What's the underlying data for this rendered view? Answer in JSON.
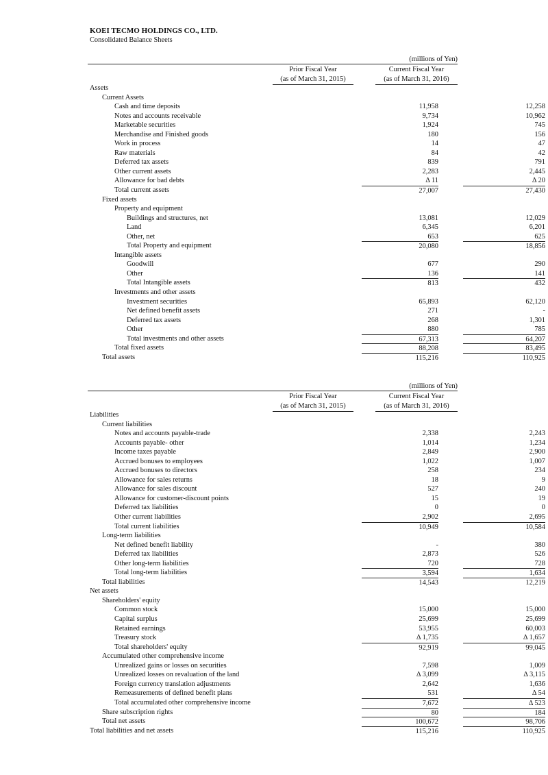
{
  "company": "KOEI TECMO HOLDINGS CO., LTD.",
  "subtitle": "Consolidated Balance Sheets",
  "unit": "(millions of Yen)",
  "col_prior": [
    "Prior Fiscal Year",
    "(as of March 31, 2015)"
  ],
  "col_current": [
    "Current Fiscal Year",
    "(as of March 31, 2016)"
  ],
  "assets": [
    {
      "label": "Assets",
      "level": 0
    },
    {
      "label": "Current Assets",
      "level": 1
    },
    {
      "label": "Cash and time deposits",
      "level": 2,
      "prior": "11,958",
      "current": "12,258"
    },
    {
      "label": "Notes and accounts receivable",
      "level": 2,
      "prior": "9,734",
      "current": "10,962"
    },
    {
      "label": "Marketable securities",
      "level": 2,
      "prior": "1,924",
      "current": "745"
    },
    {
      "label": "Merchandise and Finished goods",
      "level": 2,
      "prior": "180",
      "current": "156"
    },
    {
      "label": "Work in process",
      "level": 2,
      "prior": "14",
      "current": "47"
    },
    {
      "label": "Raw materials",
      "level": 2,
      "prior": "84",
      "current": "42"
    },
    {
      "label": "Deferred tax assets",
      "level": 2,
      "prior": "839",
      "current": "791"
    },
    {
      "label": "Other current assets",
      "level": 2,
      "prior": "2,283",
      "current": "2,445"
    },
    {
      "label": "Allowance for bad debts",
      "level": 2,
      "prior": "Δ 11",
      "current": "Δ 20"
    },
    {
      "label": "Total current assets",
      "level": 2,
      "prior": "27,007",
      "current": "27,430",
      "total": true
    },
    {
      "label": "Fixed assets",
      "level": 1
    },
    {
      "label": "Property and equipment",
      "level": 2
    },
    {
      "label": "Buildings and structures, net",
      "level": 3,
      "prior": "13,081",
      "current": "12,029"
    },
    {
      "label": "Land",
      "level": 3,
      "prior": "6,345",
      "current": "6,201"
    },
    {
      "label": "Other, net",
      "level": 3,
      "prior": "653",
      "current": "625"
    },
    {
      "label": "Total Property and equipment",
      "level": 3,
      "prior": "20,080",
      "current": "18,856",
      "total": true
    },
    {
      "label": "Intangible assets",
      "level": 2
    },
    {
      "label": "Goodwill",
      "level": 3,
      "prior": "677",
      "current": "290"
    },
    {
      "label": "Other",
      "level": 3,
      "prior": "136",
      "current": "141"
    },
    {
      "label": "Total Intangible assets",
      "level": 3,
      "prior": "813",
      "current": "432",
      "total": true
    },
    {
      "label": "Investments and other assets",
      "level": 2
    },
    {
      "label": "Investment securities",
      "level": 3,
      "prior": "65,893",
      "current": "62,120"
    },
    {
      "label": "Net defined benefit assets",
      "level": 3,
      "prior": "271",
      "current": "-"
    },
    {
      "label": "Deferred tax assets",
      "level": 3,
      "prior": "268",
      "current": "1,301"
    },
    {
      "label": "Other",
      "level": 3,
      "prior": "880",
      "current": "785"
    },
    {
      "label": "Total investments and other assets",
      "level": 3,
      "prior": "67,313",
      "current": "64,207",
      "total": true
    },
    {
      "label": "Total fixed assets",
      "level": 2,
      "prior": "88,208",
      "current": "83,495",
      "total": true
    },
    {
      "label": "Total assets",
      "level": 1,
      "prior": "115,216",
      "current": "110,925",
      "total": true
    }
  ],
  "liabilities": [
    {
      "label": "Liabilities",
      "level": 0
    },
    {
      "label": "Current liabilities",
      "level": 1
    },
    {
      "label": "Notes and accounts payable-trade",
      "level": 2,
      "prior": "2,338",
      "current": "2,243"
    },
    {
      "label": "Accounts payable- other",
      "level": 2,
      "prior": "1,014",
      "current": "1,234"
    },
    {
      "label": "Income taxes payable",
      "level": 2,
      "prior": "2,849",
      "current": "2,900"
    },
    {
      "label": "Accrued bonuses to employees",
      "level": 2,
      "prior": "1,022",
      "current": "1,007"
    },
    {
      "label": "Accrued bonuses to directors",
      "level": 2,
      "prior": "258",
      "current": "234"
    },
    {
      "label": "Allowance for sales returns",
      "level": 2,
      "prior": "18",
      "current": "9"
    },
    {
      "label": "Allowance for sales discount",
      "level": 2,
      "prior": "527",
      "current": "240"
    },
    {
      "label": "Allowance for customer-discount points",
      "level": 2,
      "prior": "15",
      "current": "19"
    },
    {
      "label": "Deferred tax liabilities",
      "level": 2,
      "prior": "0",
      "current": "0"
    },
    {
      "label": "Other current liabilities",
      "level": 2,
      "prior": "2,902",
      "current": "2,695"
    },
    {
      "label": "Total current liabilities",
      "level": 2,
      "prior": "10,949",
      "current": "10,584",
      "total": true
    },
    {
      "label": "Long-term liabilities",
      "level": 1
    },
    {
      "label": "Net defined benefit liability",
      "level": 2,
      "prior": "-",
      "current": "380"
    },
    {
      "label": "Deferred tax liabilities",
      "level": 2,
      "prior": "2,873",
      "current": "526"
    },
    {
      "label": "Other long-term liabilities",
      "level": 2,
      "prior": "720",
      "current": "728"
    },
    {
      "label": "Total long-term liabilities",
      "level": 2,
      "prior": "3,594",
      "current": "1,634",
      "total": true
    },
    {
      "label": "Total liabilities",
      "level": 1,
      "prior": "14,543",
      "current": "12,219",
      "total": true
    },
    {
      "label": "Net assets",
      "level": 0
    },
    {
      "label": "Shareholders' equity",
      "level": 1
    },
    {
      "label": "Common stock",
      "level": 2,
      "prior": "15,000",
      "current": "15,000"
    },
    {
      "label": "Capital surplus",
      "level": 2,
      "prior": "25,699",
      "current": "25,699"
    },
    {
      "label": "Retained earnings",
      "level": 2,
      "prior": "53,955",
      "current": "60,003"
    },
    {
      "label": "Treasury stock",
      "level": 2,
      "prior": "Δ 1,735",
      "current": "Δ 1,657"
    },
    {
      "label": "Total shareholders' equity",
      "level": 2,
      "prior": "92,919",
      "current": "99,045",
      "total": true
    },
    {
      "label": "Accumulated other comprehensive income",
      "level": 1
    },
    {
      "label": "Unrealized gains or losses on securities",
      "level": 2,
      "prior": "7,598",
      "current": "1,009"
    },
    {
      "label": "Unrealized losses on revaluation of the land",
      "level": 2,
      "prior": "Δ 3,099",
      "current": "Δ 3,115"
    },
    {
      "label": "Foreign currency translation adjustments",
      "level": 2,
      "prior": "2,642",
      "current": "1,636"
    },
    {
      "label": "Remeasurements of defined benefit plans",
      "level": 2,
      "prior": "531",
      "current": "Δ 54"
    },
    {
      "label": "Total accumulated other comprehensive income",
      "level": 2,
      "prior": "7,672",
      "current": "Δ 523",
      "total": true
    },
    {
      "label": "Share subscription rights",
      "level": 1,
      "prior": "80",
      "current": "184",
      "total": true
    },
    {
      "label": "Total net assets",
      "level": 1,
      "prior": "100,672",
      "current": "98,706",
      "total": true
    },
    {
      "label": "Total liabilities and net assets",
      "level": 0,
      "prior": "115,216",
      "current": "110,925",
      "total": true
    }
  ]
}
